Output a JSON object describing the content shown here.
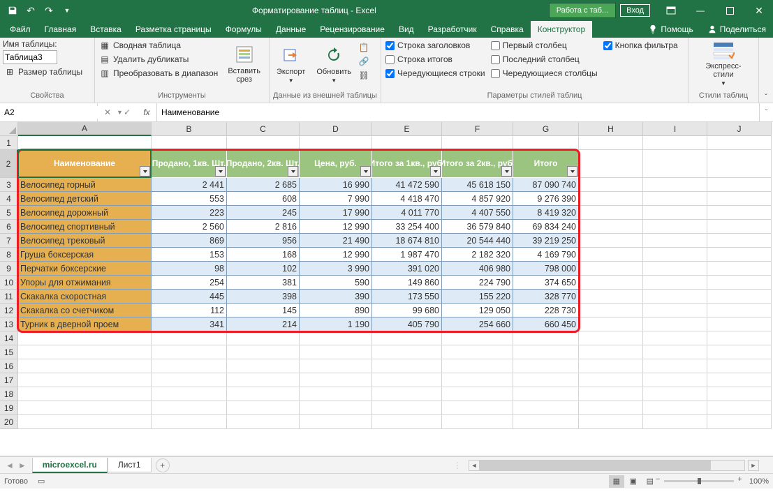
{
  "title": "Форматирование таблиц  -  Excel",
  "context_tab": "Работа с таб...",
  "login": "Вход",
  "menus": [
    "Файл",
    "Главная",
    "Вставка",
    "Разметка страницы",
    "Формулы",
    "Данные",
    "Рецензирование",
    "Вид",
    "Разработчик",
    "Справка"
  ],
  "active_menu": "Конструктор",
  "right_menus": {
    "help": "Помощь",
    "share": "Поделиться"
  },
  "ribbon": {
    "g1": {
      "label": "Свойства",
      "table_name_label": "Имя таблицы:",
      "table_name": "Таблица3",
      "resize": "Размер таблицы"
    },
    "g2": {
      "label": "Инструменты",
      "pivot": "Сводная таблица",
      "dedupe": "Удалить дубликаты",
      "torange": "Преобразовать в диапазон",
      "slicer": "Вставить срез"
    },
    "g3": {
      "label": "Данные из внешней таблицы",
      "export": "Экспорт",
      "refresh": "Обновить"
    },
    "g4": {
      "label": "Параметры стилей таблиц",
      "c1": "Строка заголовков",
      "c1v": true,
      "c2": "Строка итогов",
      "c2v": false,
      "c3": "Чередующиеся строки",
      "c3v": true,
      "c4": "Первый столбец",
      "c4v": false,
      "c5": "Последний столбец",
      "c5v": false,
      "c6": "Чередующиеся столбцы",
      "c6v": false,
      "c7": "Кнопка фильтра",
      "c7v": true
    },
    "g5": {
      "label": "Стили таблиц",
      "express": "Экспресс-стили"
    }
  },
  "namebox": "A2",
  "formula": "Наименование",
  "columns": [
    "A",
    "B",
    "C",
    "D",
    "E",
    "F",
    "G",
    "H",
    "I",
    "J"
  ],
  "active_cell": {
    "row": 2,
    "col": 0
  },
  "table": {
    "header_row": 2,
    "headers": [
      "Наименование",
      "Продано, 1кв. Шт.",
      "Продано, 2кв. Шт.",
      "Цена, руб.",
      "Итого за 1кв., руб.",
      "Итого за 2кв., руб.",
      "Итого"
    ],
    "rows": [
      [
        "Велосипед горный",
        "2 441",
        "2 685",
        "16 990",
        "41 472 590",
        "45 618 150",
        "87 090 740"
      ],
      [
        "Велосипед детский",
        "553",
        "608",
        "7 990",
        "4 418 470",
        "4 857 920",
        "9 276 390"
      ],
      [
        "Велосипед дорожный",
        "223",
        "245",
        "17 990",
        "4 011 770",
        "4 407 550",
        "8 419 320"
      ],
      [
        "Велосипед спортивный",
        "2 560",
        "2 816",
        "12 990",
        "33 254 400",
        "36 579 840",
        "69 834 240"
      ],
      [
        "Велосипед трековый",
        "869",
        "956",
        "21 490",
        "18 674 810",
        "20 544 440",
        "39 219 250"
      ],
      [
        "Груша боксерская",
        "153",
        "168",
        "12 990",
        "1 987 470",
        "2 182 320",
        "4 169 790"
      ],
      [
        "Перчатки боксерские",
        "98",
        "102",
        "3 990",
        "391 020",
        "406 980",
        "798 000"
      ],
      [
        "Упоры для отжимания",
        "254",
        "381",
        "590",
        "149 860",
        "224 790",
        "374 650"
      ],
      [
        "Скакалка скоростная",
        "445",
        "398",
        "390",
        "173 550",
        "155 220",
        "328 770"
      ],
      [
        "Скакалка со счетчиком",
        "112",
        "145",
        "890",
        "99 680",
        "129 050",
        "228 730"
      ],
      [
        "Турник в дверной проем",
        "341",
        "214",
        "1 190",
        "405 790",
        "254 660",
        "660 450"
      ]
    ],
    "colors": {
      "header_first": "#e6b050",
      "header_rest": "#9ac47f",
      "band": "#deeaf6",
      "firstcol": "#e6b050",
      "highlight": "#ed1c24"
    }
  },
  "total_rows": 20,
  "sheets": {
    "active": "microexcel.ru",
    "others": [
      "Лист1"
    ]
  },
  "status": {
    "ready": "Готово",
    "zoom": "100%"
  }
}
